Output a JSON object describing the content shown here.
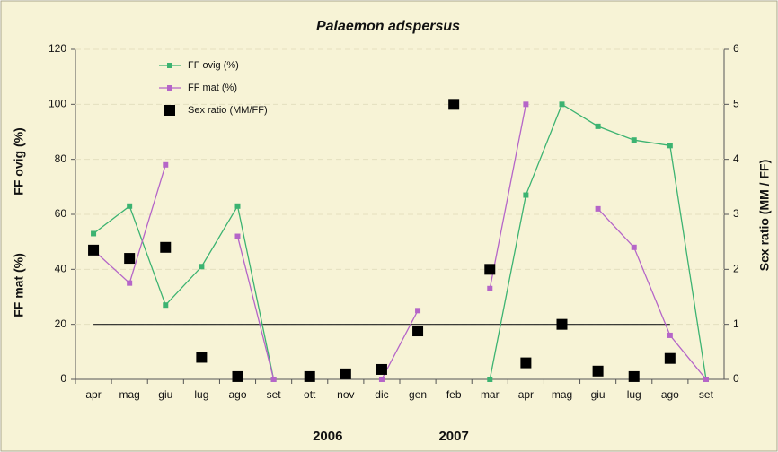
{
  "chart_data": {
    "type": "line",
    "title": "Palaemon adspersus",
    "y_label": "FF ovig (%)",
    "y_label_2": "FF mat (%)",
    "y2_label": "Sex ratio (MM / FF)",
    "categories": [
      "apr",
      "mag",
      "giu",
      "lug",
      "ago",
      "set",
      "ott",
      "nov",
      "dic",
      "gen",
      "feb",
      "mar",
      "apr",
      "mag",
      "giu",
      "lug",
      "ago",
      "set"
    ],
    "year_labels": [
      {
        "label": "2006",
        "category_index": 6.5
      },
      {
        "label": "2007",
        "category_index": 10
      }
    ],
    "series": [
      {
        "name": "FF ovig (%)",
        "color": "#3cb371",
        "marker": "square-small",
        "values": [
          53,
          63,
          27,
          41,
          63,
          0,
          null,
          null,
          null,
          null,
          null,
          0,
          67,
          100,
          92,
          87,
          85,
          0
        ]
      },
      {
        "name": "FF mat (%)",
        "color": "#b565c8",
        "marker": "square-small",
        "values": [
          47,
          35,
          78,
          null,
          52,
          0,
          null,
          null,
          0,
          25,
          null,
          33,
          100,
          null,
          62,
          48,
          16,
          0
        ]
      },
      {
        "name": "Sex ratio (MM/FF)",
        "color": "#000000",
        "marker": "square-large",
        "axis": "y2",
        "values": [
          2.35,
          2.2,
          2.4,
          0.4,
          0.05,
          null,
          0.05,
          0.1,
          0.18,
          0.88,
          5,
          2,
          0.3,
          1,
          0.15,
          0.05,
          0.38,
          null
        ]
      }
    ],
    "ylim": [
      0,
      120
    ],
    "yticks": [
      0,
      20,
      40,
      60,
      80,
      100,
      120
    ],
    "y2lim": [
      0,
      6
    ],
    "y2ticks": [
      0,
      1,
      2,
      3,
      4,
      5,
      6
    ],
    "reference_line_y2": 1,
    "grid": true,
    "legend": "upper-left"
  }
}
